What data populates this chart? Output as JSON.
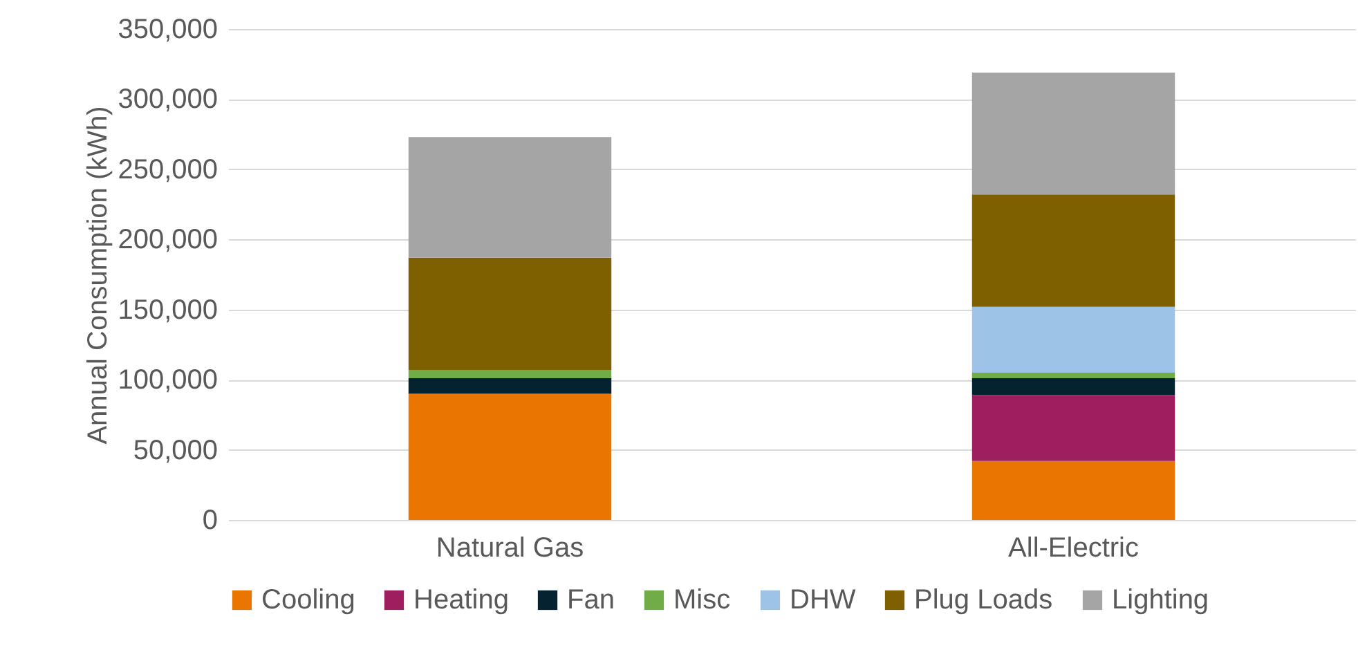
{
  "chart_data": {
    "type": "bar",
    "stacked": true,
    "ylabel": "Annual Consumption (kWh)",
    "categories": [
      "Natural Gas",
      "All-Electric"
    ],
    "series": [
      {
        "name": "Cooling",
        "color": "#e97600",
        "values": [
          90000,
          42000
        ]
      },
      {
        "name": "Heating",
        "color": "#9e1f5f",
        "values": [
          0,
          47000
        ]
      },
      {
        "name": "Fan",
        "color": "#052230",
        "values": [
          11000,
          12000
        ]
      },
      {
        "name": "Misc",
        "color": "#70ad47",
        "values": [
          6000,
          4000
        ]
      },
      {
        "name": "DHW",
        "color": "#9dc3e6",
        "values": [
          0,
          47000
        ]
      },
      {
        "name": "Plug Loads",
        "color": "#7f6000",
        "values": [
          80000,
          80000
        ]
      },
      {
        "name": "Lighting",
        "color": "#a5a5a5",
        "values": [
          86000,
          87000
        ]
      }
    ],
    "ylim": [
      0,
      350000
    ],
    "yticks": [
      0,
      {
        "value": 50000,
        "label": "50,000"
      },
      {
        "value": 100000,
        "label": "100,000"
      },
      {
        "value": 150000,
        "label": "150,000"
      },
      {
        "value": 200000,
        "label": "200,000"
      },
      {
        "value": 250000,
        "label": "250,000"
      },
      {
        "value": 300000,
        "label": "300,000"
      },
      {
        "value": 350000,
        "label": "350,000"
      }
    ],
    "grid": "y",
    "legend": "bottom"
  }
}
